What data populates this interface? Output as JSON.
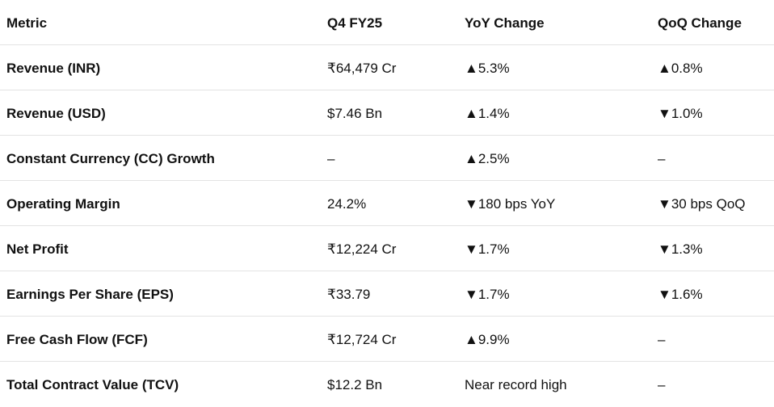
{
  "table": {
    "headers": [
      "Metric",
      "Q4 FY25",
      "YoY Change",
      "QoQ Change"
    ],
    "rows": [
      [
        "Revenue (INR)",
        "₹64,479 Cr",
        "▲5.3%",
        "▲0.8%"
      ],
      [
        "Revenue (USD)",
        "$7.46 Bn",
        "▲1.4%",
        "▼1.0%"
      ],
      [
        "Constant Currency (CC) Growth",
        "–",
        "▲2.5%",
        "–"
      ],
      [
        "Operating Margin",
        "24.2%",
        "▼180 bps YoY",
        "▼30 bps QoQ"
      ],
      [
        "Net Profit",
        "₹12,224 Cr",
        "▼1.7%",
        "▼1.3%"
      ],
      [
        "Earnings Per Share (EPS)",
        "₹33.79",
        "▼1.7%",
        "▼1.6%"
      ],
      [
        "Free Cash Flow (FCF)",
        "₹12,724 Cr",
        "▲9.9%",
        "–"
      ],
      [
        "Total Contract Value (TCV)",
        "$12.2 Bn",
        "Near record high",
        "–"
      ]
    ]
  }
}
